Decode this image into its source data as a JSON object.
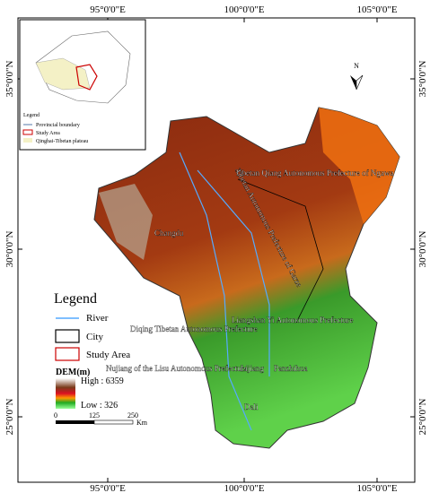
{
  "graticule": {
    "longitudes": [
      "95°0'0\"E",
      "100°0'0\"E",
      "105°0'0\"E"
    ],
    "latitudes": [
      "35°0'0\"N",
      "30°0'0\"N",
      "25°0'0\"N"
    ]
  },
  "inset": {
    "legend_title": "Legend",
    "items": [
      "Provincial boundary",
      "Study Area",
      "Qinghai-Tibetan plateau"
    ]
  },
  "north_arrow": "N",
  "legend": {
    "title": "Legend",
    "items": [
      "River",
      "City",
      "Study Area"
    ],
    "dem_title": "DEM(m)",
    "high": "High : 6359",
    "low": "Low : 326",
    "scale": [
      "0",
      "125",
      "250"
    ],
    "scale_unit": "Km"
  },
  "places": [
    "Tibetan Qiang Autonomous Prefecture of Ngawa",
    "Tibetan Autonomous Prefecture of Garze",
    "Changdu",
    "Liangshan Yi Autonomous Prefecture",
    "Diqing Tibetan Autonomous Prefecture",
    "Nujiang of the Lisu Autonomous Prefecture",
    "Lijiang",
    "Panzhihua",
    "Dali"
  ]
}
